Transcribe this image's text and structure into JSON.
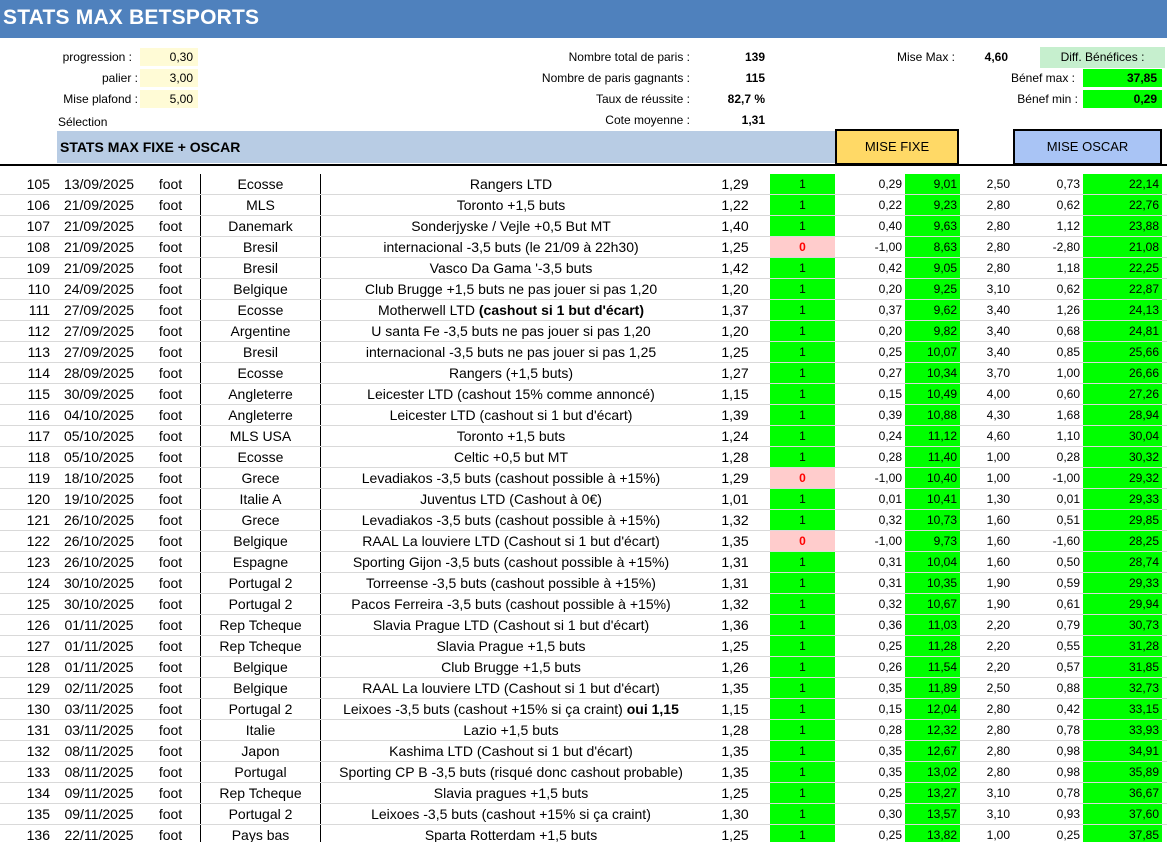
{
  "title": "STATS MAX BETSPORTS",
  "params": {
    "progression_label": "progression :",
    "progression_value": "0,30",
    "palier_label": "palier :",
    "palier_value": "3,00",
    "mise_plafond_label": "Mise plafond :",
    "mise_plafond_value": "5,00",
    "selection_label": "Sélection"
  },
  "summary": {
    "total_label": "Nombre total de paris :",
    "total_value": "139",
    "gagnants_label": "Nombre de paris gagnants :",
    "gagnants_value": "115",
    "taux_label": "Taux de réussite :",
    "taux_value": "82,7 %",
    "cote_label": "Cote moyenne :",
    "cote_value": "1,31"
  },
  "mise": {
    "mise_max_label": "Mise Max :",
    "mise_max_value": "4,60",
    "diff_label": "Diff. Bénéfices :",
    "benef_max_label": "Bénef max :",
    "benef_max_value": "37,85",
    "benef_min_label": "Bénef min :",
    "benef_min_value": "0,29"
  },
  "section": {
    "title": "STATS MAX FIXE + OSCAR",
    "mise_fixe": "MISE FIXE",
    "mise_oscar": "MISE OSCAR"
  },
  "colors": {
    "title_bar": "#4f81bd",
    "win": "#00ff00",
    "loss_bg": "#ffcccc",
    "loss_text": "#ff0000",
    "mise_fixe_bg": "#ffd966",
    "mise_oscar_bg": "#a9c4f5"
  },
  "rows": [
    {
      "num": "105",
      "date": "13/09/2025",
      "sport": "foot",
      "country": "Ecosse",
      "match": "Rangers LTD",
      "match_bold": "",
      "cote": "1,29",
      "res": "1",
      "gain_fixe": "0,29",
      "cumul_fixe": "9,01",
      "mise_oscar": "2,50",
      "gain_oscar": "0,73",
      "cumul_oscar": "22,14"
    },
    {
      "num": "106",
      "date": "21/09/2025",
      "sport": "foot",
      "country": "MLS",
      "match": "Toronto +1,5 buts",
      "match_bold": "",
      "cote": "1,22",
      "res": "1",
      "gain_fixe": "0,22",
      "cumul_fixe": "9,23",
      "mise_oscar": "2,80",
      "gain_oscar": "0,62",
      "cumul_oscar": "22,76"
    },
    {
      "num": "107",
      "date": "21/09/2025",
      "sport": "foot",
      "country": "Danemark",
      "match": "Sonderjyske / Vejle +0,5 But MT",
      "match_bold": "",
      "cote": "1,40",
      "res": "1",
      "gain_fixe": "0,40",
      "cumul_fixe": "9,63",
      "mise_oscar": "2,80",
      "gain_oscar": "1,12",
      "cumul_oscar": "23,88"
    },
    {
      "num": "108",
      "date": "21/09/2025",
      "sport": "foot",
      "country": "Bresil",
      "match": "internacional -3,5 buts (le 21/09 à 22h30)",
      "match_bold": "",
      "cote": "1,25",
      "res": "0",
      "gain_fixe": "-1,00",
      "cumul_fixe": "8,63",
      "mise_oscar": "2,80",
      "gain_oscar": "-2,80",
      "cumul_oscar": "21,08"
    },
    {
      "num": "109",
      "date": "21/09/2025",
      "sport": "foot",
      "country": "Bresil",
      "match": "Vasco Da Gama '-3,5 buts",
      "match_bold": "",
      "cote": "1,42",
      "res": "1",
      "gain_fixe": "0,42",
      "cumul_fixe": "9,05",
      "mise_oscar": "2,80",
      "gain_oscar": "1,18",
      "cumul_oscar": "22,25"
    },
    {
      "num": "110",
      "date": "24/09/2025",
      "sport": "foot",
      "country": "Belgique",
      "match": "Club Brugge +1,5 buts ne pas jouer si pas 1,20",
      "match_bold": "",
      "cote": "1,20",
      "res": "1",
      "gain_fixe": "0,20",
      "cumul_fixe": "9,25",
      "mise_oscar": "3,10",
      "gain_oscar": "0,62",
      "cumul_oscar": "22,87"
    },
    {
      "num": "111",
      "date": "27/09/2025",
      "sport": "foot",
      "country": "Ecosse",
      "match": "Motherwell LTD ",
      "match_bold": "(cashout si 1 but d'écart)",
      "cote": "1,37",
      "res": "1",
      "gain_fixe": "0,37",
      "cumul_fixe": "9,62",
      "mise_oscar": "3,40",
      "gain_oscar": "1,26",
      "cumul_oscar": "24,13"
    },
    {
      "num": "112",
      "date": "27/09/2025",
      "sport": "foot",
      "country": "Argentine",
      "match": "U santa Fe -3,5 buts ne pas jouer si pas 1,20",
      "match_bold": "",
      "cote": "1,20",
      "res": "1",
      "gain_fixe": "0,20",
      "cumul_fixe": "9,82",
      "mise_oscar": "3,40",
      "gain_oscar": "0,68",
      "cumul_oscar": "24,81"
    },
    {
      "num": "113",
      "date": "27/09/2025",
      "sport": "foot",
      "country": "Bresil",
      "match": "internacional -3,5 buts ne pas jouer si pas 1,25",
      "match_bold": "",
      "cote": "1,25",
      "res": "1",
      "gain_fixe": "0,25",
      "cumul_fixe": "10,07",
      "mise_oscar": "3,40",
      "gain_oscar": "0,85",
      "cumul_oscar": "25,66"
    },
    {
      "num": "114",
      "date": "28/09/2025",
      "sport": "foot",
      "country": "Ecosse",
      "match": "Rangers (+1,5 buts)",
      "match_bold": "",
      "cote": "1,27",
      "res": "1",
      "gain_fixe": "0,27",
      "cumul_fixe": "10,34",
      "mise_oscar": "3,70",
      "gain_oscar": "1,00",
      "cumul_oscar": "26,66"
    },
    {
      "num": "115",
      "date": "30/09/2025",
      "sport": "foot",
      "country": "Angleterre",
      "match": "Leicester LTD (cashout 15% comme annoncé)",
      "match_bold": "",
      "cote": "1,15",
      "res": "1",
      "gain_fixe": "0,15",
      "cumul_fixe": "10,49",
      "mise_oscar": "4,00",
      "gain_oscar": "0,60",
      "cumul_oscar": "27,26"
    },
    {
      "num": "116",
      "date": "04/10/2025",
      "sport": "foot",
      "country": "Angleterre",
      "match": "Leicester LTD (cashout si 1 but d'écart)",
      "match_bold": "",
      "cote": "1,39",
      "res": "1",
      "gain_fixe": "0,39",
      "cumul_fixe": "10,88",
      "mise_oscar": "4,30",
      "gain_oscar": "1,68",
      "cumul_oscar": "28,94"
    },
    {
      "num": "117",
      "date": "05/10/2025",
      "sport": "foot",
      "country": "MLS USA",
      "match": "Toronto +1,5 buts",
      "match_bold": "",
      "cote": "1,24",
      "res": "1",
      "gain_fixe": "0,24",
      "cumul_fixe": "11,12",
      "mise_oscar": "4,60",
      "gain_oscar": "1,10",
      "cumul_oscar": "30,04"
    },
    {
      "num": "118",
      "date": "05/10/2025",
      "sport": "foot",
      "country": "Ecosse",
      "match": "Celtic +0,5 but MT",
      "match_bold": "",
      "cote": "1,28",
      "res": "1",
      "gain_fixe": "0,28",
      "cumul_fixe": "11,40",
      "mise_oscar": "1,00",
      "gain_oscar": "0,28",
      "cumul_oscar": "30,32"
    },
    {
      "num": "119",
      "date": "18/10/2025",
      "sport": "foot",
      "country": "Grece",
      "match": "Levadiakos -3,5 buts (cashout possible à +15%)",
      "match_bold": "",
      "cote": "1,29",
      "res": "0",
      "gain_fixe": "-1,00",
      "cumul_fixe": "10,40",
      "mise_oscar": "1,00",
      "gain_oscar": "-1,00",
      "cumul_oscar": "29,32"
    },
    {
      "num": "120",
      "date": "19/10/2025",
      "sport": "foot",
      "country": "Italie A",
      "match": "Juventus LTD (Cashout à 0€)",
      "match_bold": "",
      "cote": "1,01",
      "res": "1",
      "gain_fixe": "0,01",
      "cumul_fixe": "10,41",
      "mise_oscar": "1,30",
      "gain_oscar": "0,01",
      "cumul_oscar": "29,33"
    },
    {
      "num": "121",
      "date": "26/10/2025",
      "sport": "foot",
      "country": "Grece",
      "match": "Levadiakos -3,5 buts (cashout possible à +15%)",
      "match_bold": "",
      "cote": "1,32",
      "res": "1",
      "gain_fixe": "0,32",
      "cumul_fixe": "10,73",
      "mise_oscar": "1,60",
      "gain_oscar": "0,51",
      "cumul_oscar": "29,85"
    },
    {
      "num": "122",
      "date": "26/10/2025",
      "sport": "foot",
      "country": "Belgique",
      "match": "RAAL La louviere LTD (Cashout si 1 but d'écart)",
      "match_bold": "",
      "cote": "1,35",
      "res": "0",
      "gain_fixe": "-1,00",
      "cumul_fixe": "9,73",
      "mise_oscar": "1,60",
      "gain_oscar": "-1,60",
      "cumul_oscar": "28,25"
    },
    {
      "num": "123",
      "date": "26/10/2025",
      "sport": "foot",
      "country": "Espagne",
      "match": "Sporting Gijon -3,5 buts (cashout possible à +15%)",
      "match_bold": "",
      "cote": "1,31",
      "res": "1",
      "gain_fixe": "0,31",
      "cumul_fixe": "10,04",
      "mise_oscar": "1,60",
      "gain_oscar": "0,50",
      "cumul_oscar": "28,74"
    },
    {
      "num": "124",
      "date": "30/10/2025",
      "sport": "foot",
      "country": "Portugal 2",
      "match": "Torreense -3,5 buts  (cashout possible à +15%)",
      "match_bold": "",
      "cote": "1,31",
      "res": "1",
      "gain_fixe": "0,31",
      "cumul_fixe": "10,35",
      "mise_oscar": "1,90",
      "gain_oscar": "0,59",
      "cumul_oscar": "29,33"
    },
    {
      "num": "125",
      "date": "30/10/2025",
      "sport": "foot",
      "country": "Portugal 2",
      "match": "Pacos Ferreira -3,5 buts  (cashout possible à +15%)",
      "match_bold": "",
      "cote": "1,32",
      "res": "1",
      "gain_fixe": "0,32",
      "cumul_fixe": "10,67",
      "mise_oscar": "1,90",
      "gain_oscar": "0,61",
      "cumul_oscar": "29,94"
    },
    {
      "num": "126",
      "date": "01/11/2025",
      "sport": "foot",
      "country": "Rep Tcheque",
      "match": "Slavia Prague LTD (Cashout si 1 but d'écart)",
      "match_bold": "",
      "cote": "1,36",
      "res": "1",
      "gain_fixe": "0,36",
      "cumul_fixe": "11,03",
      "mise_oscar": "2,20",
      "gain_oscar": "0,79",
      "cumul_oscar": "30,73"
    },
    {
      "num": "127",
      "date": "01/11/2025",
      "sport": "foot",
      "country": "Rep Tcheque",
      "match": "Slavia Prague +1,5 buts",
      "match_bold": "",
      "cote": "1,25",
      "res": "1",
      "gain_fixe": "0,25",
      "cumul_fixe": "11,28",
      "mise_oscar": "2,20",
      "gain_oscar": "0,55",
      "cumul_oscar": "31,28"
    },
    {
      "num": "128",
      "date": "01/11/2025",
      "sport": "foot",
      "country": "Belgique",
      "match": "Club Brugge +1,5 buts",
      "match_bold": "",
      "cote": "1,26",
      "res": "1",
      "gain_fixe": "0,26",
      "cumul_fixe": "11,54",
      "mise_oscar": "2,20",
      "gain_oscar": "0,57",
      "cumul_oscar": "31,85"
    },
    {
      "num": "129",
      "date": "02/11/2025",
      "sport": "foot",
      "country": "Belgique",
      "match": "RAAL La louviere LTD (Cashout si 1 but d'écart)",
      "match_bold": "",
      "cote": "1,35",
      "res": "1",
      "gain_fixe": "0,35",
      "cumul_fixe": "11,89",
      "mise_oscar": "2,50",
      "gain_oscar": "0,88",
      "cumul_oscar": "32,73"
    },
    {
      "num": "130",
      "date": "03/11/2025",
      "sport": "foot",
      "country": "Portugal 2",
      "match": "Leixoes -3,5 buts (cashout +15% si ça craint) ",
      "match_bold": "oui 1,15",
      "cote": "1,15",
      "res": "1",
      "gain_fixe": "0,15",
      "cumul_fixe": "12,04",
      "mise_oscar": "2,80",
      "gain_oscar": "0,42",
      "cumul_oscar": "33,15"
    },
    {
      "num": "131",
      "date": "03/11/2025",
      "sport": "foot",
      "country": "Italie",
      "match": "Lazio +1,5 buts",
      "match_bold": "",
      "cote": "1,28",
      "res": "1",
      "gain_fixe": "0,28",
      "cumul_fixe": "12,32",
      "mise_oscar": "2,80",
      "gain_oscar": "0,78",
      "cumul_oscar": "33,93"
    },
    {
      "num": "132",
      "date": "08/11/2025",
      "sport": "foot",
      "country": "Japon",
      "match": "Kashima LTD (Cashout si 1 but d'écart)",
      "match_bold": "",
      "cote": "1,35",
      "res": "1",
      "gain_fixe": "0,35",
      "cumul_fixe": "12,67",
      "mise_oscar": "2,80",
      "gain_oscar": "0,98",
      "cumul_oscar": "34,91"
    },
    {
      "num": "133",
      "date": "08/11/2025",
      "sport": "foot",
      "country": "Portugal",
      "match": "Sporting CP B -3,5 buts (risqué donc cashout probable)",
      "match_bold": "",
      "cote": "1,35",
      "res": "1",
      "gain_fixe": "0,35",
      "cumul_fixe": "13,02",
      "mise_oscar": "2,80",
      "gain_oscar": "0,98",
      "cumul_oscar": "35,89"
    },
    {
      "num": "134",
      "date": "09/11/2025",
      "sport": "foot",
      "country": "Rep Tcheque",
      "match": "Slavia pragues +1,5 buts",
      "match_bold": "",
      "cote": "1,25",
      "res": "1",
      "gain_fixe": "0,25",
      "cumul_fixe": "13,27",
      "mise_oscar": "3,10",
      "gain_oscar": "0,78",
      "cumul_oscar": "36,67"
    },
    {
      "num": "135",
      "date": "09/11/2025",
      "sport": "foot",
      "country": "Portugal 2",
      "match": "Leixoes -3,5 buts (cashout +15% si ça craint)",
      "match_bold": "",
      "cote": "1,30",
      "res": "1",
      "gain_fixe": "0,30",
      "cumul_fixe": "13,57",
      "mise_oscar": "3,10",
      "gain_oscar": "0,93",
      "cumul_oscar": "37,60"
    },
    {
      "num": "136",
      "date": "22/11/2025",
      "sport": "foot",
      "country": "Pays bas",
      "match": "Sparta Rotterdam +1,5 buts",
      "match_bold": "",
      "cote": "1,25",
      "res": "1",
      "gain_fixe": "0,25",
      "cumul_fixe": "13,82",
      "mise_oscar": "1,00",
      "gain_oscar": "0,25",
      "cumul_oscar": "37,85"
    }
  ]
}
